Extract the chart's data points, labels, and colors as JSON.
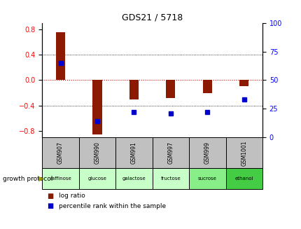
{
  "title": "GDS21 / 5718",
  "samples": [
    "GSM907",
    "GSM990",
    "GSM991",
    "GSM997",
    "GSM999",
    "GSM1001"
  ],
  "protocols": [
    "raffinose",
    "glucose",
    "galactose",
    "fructose",
    "sucrose",
    "ethanol"
  ],
  "log_ratios": [
    0.75,
    -0.85,
    -0.3,
    -0.28,
    -0.2,
    -0.09
  ],
  "percentile_ranks": [
    65,
    14,
    22,
    21,
    22,
    33
  ],
  "ylim_left": [
    -0.9,
    0.9
  ],
  "ylim_right": [
    0,
    100
  ],
  "yticks_left": [
    -0.8,
    -0.4,
    0.0,
    0.4,
    0.8
  ],
  "yticks_right": [
    0,
    25,
    50,
    75,
    100
  ],
  "bar_color": "#8B1A00",
  "dot_color": "#0000CC",
  "zero_line_color": "#CC0000",
  "sample_bg": "#C0C0C0",
  "proto_colors": [
    "#C8FFC8",
    "#C8FFC8",
    "#C8FFC8",
    "#C8FFC8",
    "#88EE88",
    "#44CC44"
  ],
  "growth_protocol_label": "growth protocol",
  "legend_log_ratio": "log ratio",
  "legend_percentile": "percentile rank within the sample"
}
